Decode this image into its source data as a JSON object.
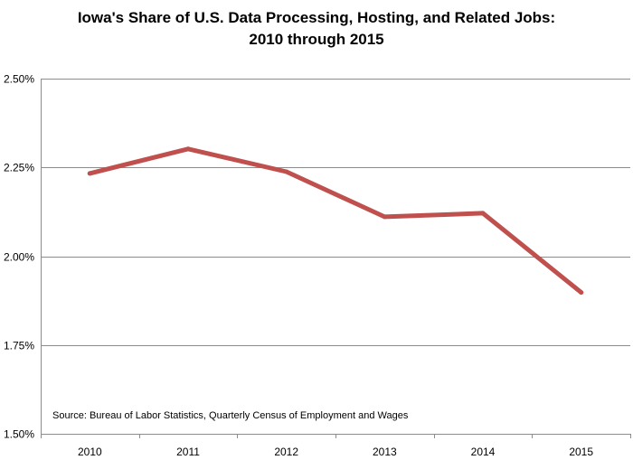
{
  "chart_data": {
    "type": "line",
    "title_line1": "Iowa's Share of U.S. Data Processing, Hosting, and Related Jobs:",
    "title_line2": "2010 through 2015",
    "xlabel": "",
    "ylabel": "",
    "categories": [
      "2010",
      "2011",
      "2012",
      "2013",
      "2014",
      "2015"
    ],
    "series": [
      {
        "values": [
          2.233,
          2.302,
          2.238,
          2.111,
          2.121,
          1.898
        ],
        "color": "#c0504d"
      }
    ],
    "ylim": [
      1.5,
      2.5
    ],
    "yticks": [
      {
        "value": 2.5,
        "label": "2.50%"
      },
      {
        "value": 2.25,
        "label": "2.25%"
      },
      {
        "value": 2.0,
        "label": "2.00%"
      },
      {
        "value": 1.75,
        "label": "1.75%"
      },
      {
        "value": 1.5,
        "label": "1.50%"
      }
    ],
    "grid": true,
    "legend": "none",
    "source": "Source: Bureau of Labor Statistics, Quarterly Census of Employment and Wages",
    "colors": {
      "line": "#c0504d",
      "grid": "#8c8c8c",
      "axis": "#8c8c8c"
    }
  }
}
